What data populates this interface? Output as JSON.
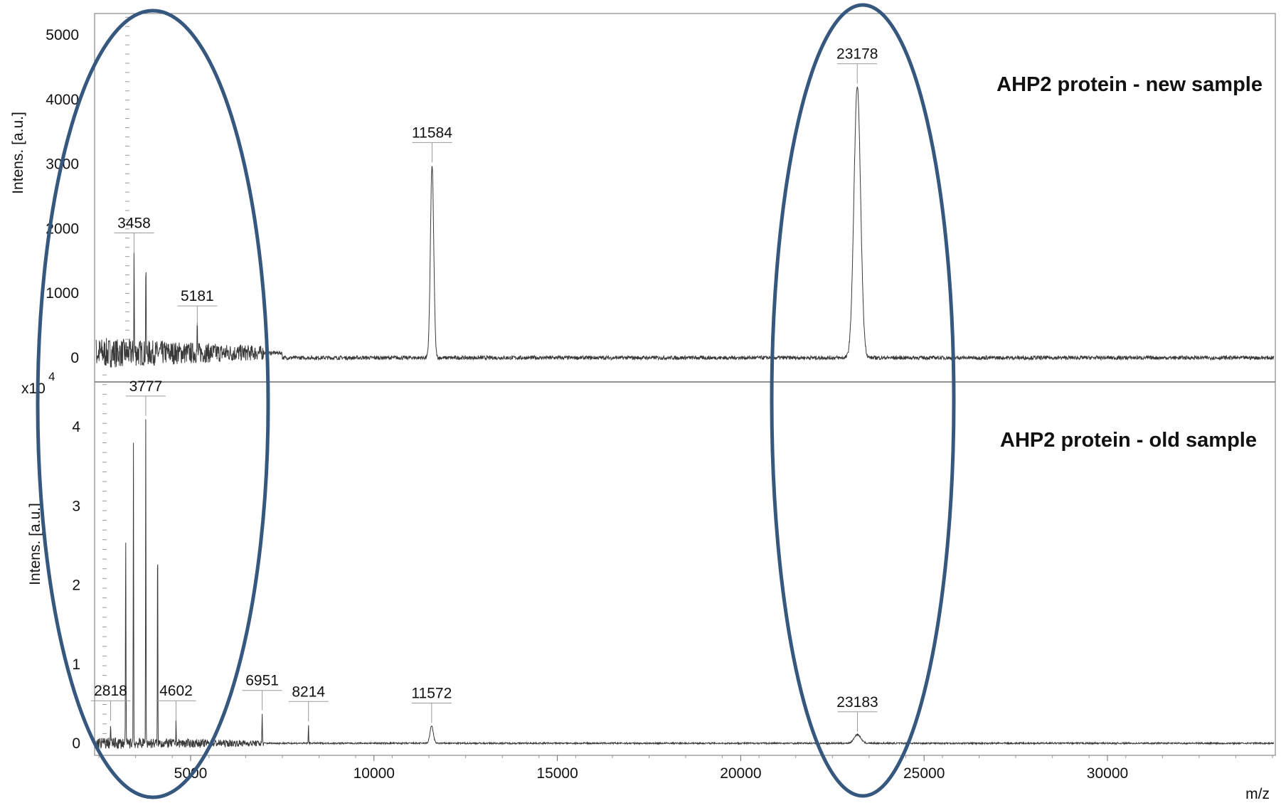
{
  "chart_data": [
    {
      "type": "line",
      "title": "AHP2 protein - new sample",
      "xlabel": "m/z",
      "ylabel": "Intens. [a.u.]",
      "xlim": [
        2000,
        35000
      ],
      "ylim": [
        -300,
        5400
      ],
      "y_ticks": [
        0,
        1000,
        2000,
        3000,
        4000,
        5000
      ],
      "peaks": [
        {
          "label": "3458",
          "x": 3458,
          "y": 1580
        },
        {
          "label": "5181",
          "x": 5181,
          "y": 450
        },
        {
          "label": "11584",
          "x": 11584,
          "y": 2980
        },
        {
          "label": "23178",
          "x": 23178,
          "y": 4200
        }
      ],
      "extra_peaks": [
        {
          "x": 3780,
          "y": 1580
        }
      ],
      "noise_level": 250
    },
    {
      "type": "line",
      "title": "AHP2 protein - old sample",
      "xlabel": "m/z",
      "ylabel": "Intens. [a.u.]",
      "y_scale_label": "x10",
      "y_scale_exponent": "4",
      "xlim": [
        2000,
        35000
      ],
      "ylim": [
        -0.2,
        4.7
      ],
      "y_ticks": [
        0,
        1,
        2,
        3,
        4
      ],
      "x_ticks": [
        5000,
        10000,
        15000,
        20000,
        25000,
        30000
      ],
      "peaks": [
        {
          "label": "2818",
          "x": 2818,
          "y": 0.25
        },
        {
          "label": "3777",
          "x": 3777,
          "y": 4.1
        },
        {
          "label": "4602",
          "x": 4602,
          "y": 0.25
        },
        {
          "label": "6951",
          "x": 6951,
          "y": 0.38
        },
        {
          "label": "8214",
          "x": 8214,
          "y": 0.24
        },
        {
          "label": "11572",
          "x": 11572,
          "y": 0.22
        },
        {
          "label": "23183",
          "x": 23183,
          "y": 0.11
        }
      ],
      "extra_peaks": [
        {
          "x": 3230,
          "y": 2.75
        },
        {
          "x": 3440,
          "y": 3.8
        },
        {
          "x": 4100,
          "y": 2.75
        }
      ],
      "noise_level": 0.08
    }
  ]
}
